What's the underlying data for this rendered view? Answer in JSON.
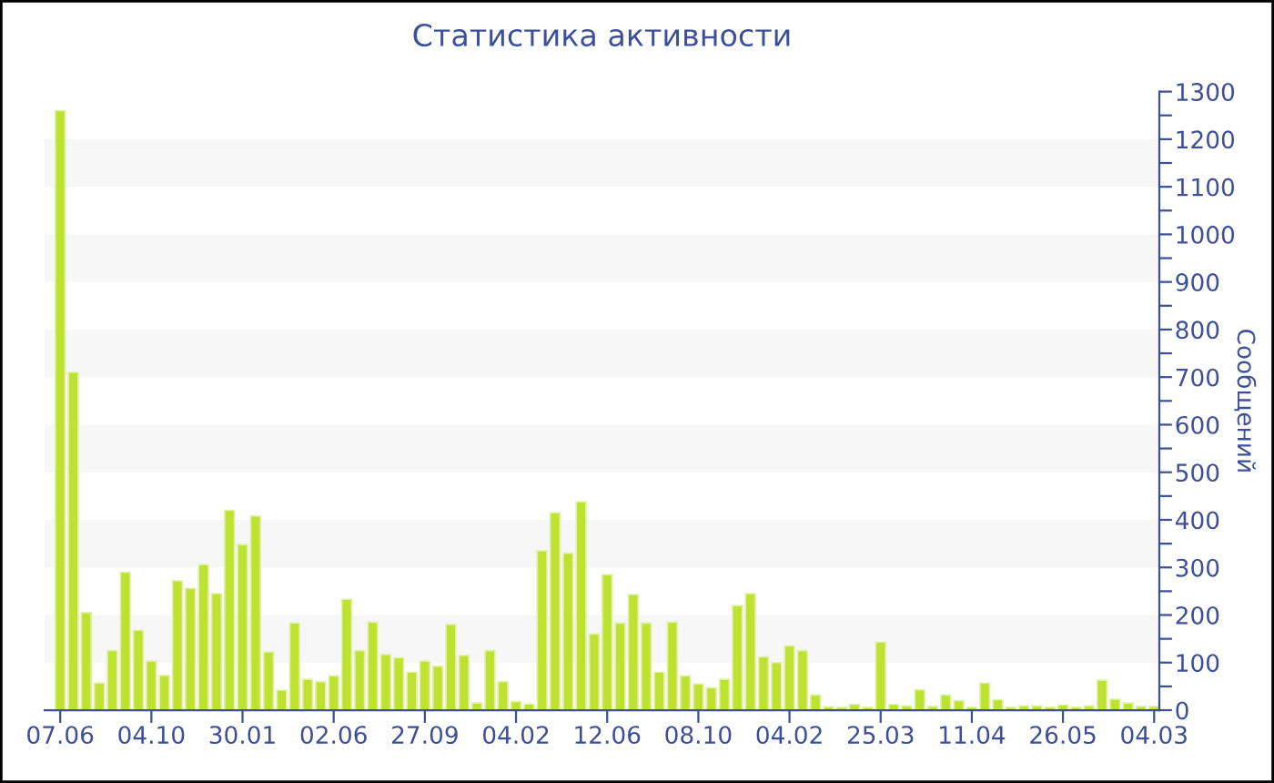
{
  "chart_data": {
    "type": "bar",
    "title": "Статистика активности",
    "ylabel": "Сообщений",
    "categories": [
      "07.06",
      null,
      null,
      null,
      null,
      null,
      null,
      "04.10",
      null,
      null,
      null,
      null,
      null,
      null,
      "30.01",
      null,
      null,
      null,
      null,
      null,
      null,
      "02.06",
      null,
      null,
      null,
      null,
      null,
      null,
      "27.09",
      null,
      null,
      null,
      null,
      null,
      null,
      "04.02",
      null,
      null,
      null,
      null,
      null,
      null,
      "12.06",
      null,
      null,
      null,
      null,
      null,
      null,
      "08.10",
      null,
      null,
      null,
      null,
      null,
      null,
      "04.02",
      null,
      null,
      null,
      null,
      null,
      null,
      "25.03",
      null,
      null,
      null,
      null,
      null,
      null,
      "11.04",
      null,
      null,
      null,
      null,
      null,
      null,
      "26.05",
      null,
      null,
      null,
      null,
      null,
      null,
      "04.03"
    ],
    "values": [
      1260,
      710,
      205,
      57,
      125,
      290,
      168,
      103,
      73,
      272,
      256,
      306,
      245,
      420,
      348,
      408,
      122,
      42,
      183,
      65,
      60,
      72,
      233,
      125,
      185,
      117,
      110,
      80,
      103,
      92,
      180,
      115,
      15,
      125,
      60,
      18,
      13,
      335,
      415,
      330,
      438,
      160,
      285,
      183,
      243,
      183,
      80,
      185,
      72,
      55,
      47,
      65,
      220,
      245,
      112,
      100,
      135,
      125,
      32,
      7,
      6,
      12,
      6,
      143,
      12,
      9,
      43,
      8,
      32,
      20,
      6,
      57,
      22,
      6,
      9,
      9,
      6,
      11,
      6,
      9,
      63,
      23,
      15,
      8,
      8
    ],
    "color": "#bde22f",
    "ylim": [
      0,
      1300
    ],
    "yticks": [
      0,
      {
        "value": 50,
        "label": null
      },
      100,
      {
        "value": 150,
        "label": null
      },
      200,
      {
        "value": 250,
        "label": null
      },
      300,
      {
        "value": 350,
        "label": null
      },
      400,
      {
        "value": 450,
        "label": null
      },
      500,
      {
        "value": 550,
        "label": null
      },
      600,
      {
        "value": 650,
        "label": null
      },
      700,
      {
        "value": 750,
        "label": null
      },
      800,
      {
        "value": 850,
        "label": null
      },
      900,
      {
        "value": 950,
        "label": null
      },
      1000,
      {
        "value": 1050,
        "label": null
      },
      1100,
      {
        "value": 1150,
        "label": null
      },
      1200,
      {
        "value": 1250,
        "label": null
      },
      1300
    ],
    "bands": [
      {
        "axis": "y",
        "from": 100,
        "to": 200,
        "color": "#f7f7f7"
      },
      {
        "axis": "y",
        "from": 300,
        "to": 400,
        "color": "#f7f7f7"
      },
      {
        "axis": "y",
        "from": 500,
        "to": 600,
        "color": "#f7f7f7"
      },
      {
        "axis": "y",
        "from": 700,
        "to": 800,
        "color": "#f7f7f7"
      },
      {
        "axis": "y",
        "from": 900,
        "to": 1000,
        "color": "#f7f7f7"
      },
      {
        "axis": "y",
        "from": 1100,
        "to": 1200,
        "color": "#f7f7f7"
      }
    ],
    "grid": false,
    "legend": false
  }
}
